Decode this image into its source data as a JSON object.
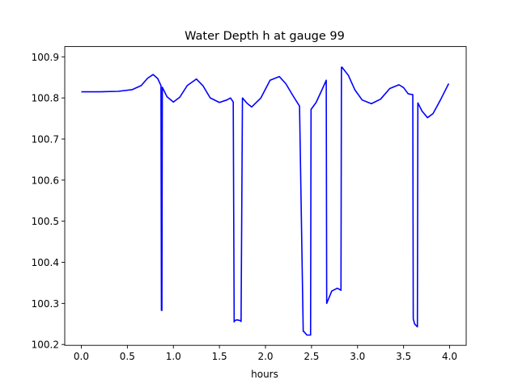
{
  "chart_data": {
    "type": "line",
    "title": "Water Depth h at gauge 99",
    "xlabel": "hours",
    "ylabel": "",
    "xlim": [
      -0.18,
      4.18
    ],
    "ylim": [
      100.198,
      100.925
    ],
    "xticks": [
      0.0,
      0.5,
      1.0,
      1.5,
      2.0,
      2.5,
      3.0,
      3.5,
      4.0
    ],
    "xtick_labels": [
      "0.0",
      "0.5",
      "1.0",
      "1.5",
      "2.0",
      "2.5",
      "3.0",
      "3.5",
      "4.0"
    ],
    "yticks": [
      100.2,
      100.3,
      100.4,
      100.5,
      100.6,
      100.7,
      100.8,
      100.9
    ],
    "ytick_labels": [
      "100.2",
      "100.3",
      "100.4",
      "100.5",
      "100.6",
      "100.7",
      "100.8",
      "100.9"
    ],
    "grid": false,
    "series": [
      {
        "color": "#0000ff",
        "x": [
          0.0,
          0.2,
          0.4,
          0.55,
          0.65,
          0.72,
          0.78,
          0.83,
          0.865,
          0.87,
          0.875,
          0.88,
          0.93,
          1.0,
          1.07,
          1.15,
          1.25,
          1.32,
          1.4,
          1.5,
          1.58,
          1.62,
          1.65,
          1.66,
          1.665,
          1.69,
          1.73,
          1.735,
          1.75,
          1.8,
          1.85,
          1.95,
          2.05,
          2.15,
          2.22,
          2.3,
          2.37,
          2.41,
          2.415,
          2.45,
          2.49,
          2.495,
          2.55,
          2.61,
          2.66,
          2.665,
          2.72,
          2.78,
          2.82,
          2.825,
          2.83,
          2.9,
          2.97,
          3.05,
          3.15,
          3.25,
          3.35,
          3.45,
          3.5,
          3.55,
          3.6,
          3.605,
          3.62,
          3.65,
          3.655,
          3.7,
          3.76,
          3.82,
          3.9,
          3.99
        ],
        "y": [
          100.815,
          100.815,
          100.816,
          100.82,
          100.83,
          100.848,
          100.857,
          100.847,
          100.83,
          100.283,
          100.283,
          100.826,
          100.803,
          100.79,
          100.802,
          100.83,
          100.846,
          100.83,
          100.8,
          100.789,
          100.795,
          100.8,
          100.79,
          100.255,
          100.258,
          100.26,
          100.258,
          100.256,
          100.8,
          100.787,
          100.778,
          100.8,
          100.843,
          100.852,
          100.835,
          100.805,
          100.78,
          100.232,
          100.232,
          100.223,
          100.223,
          100.772,
          100.789,
          100.818,
          100.843,
          100.3,
          100.33,
          100.337,
          100.332,
          100.874,
          100.875,
          100.855,
          100.82,
          100.795,
          100.786,
          100.797,
          100.823,
          100.832,
          100.825,
          100.81,
          100.808,
          100.262,
          100.25,
          100.243,
          100.788,
          100.768,
          100.752,
          100.762,
          100.795,
          100.835
        ]
      }
    ]
  }
}
